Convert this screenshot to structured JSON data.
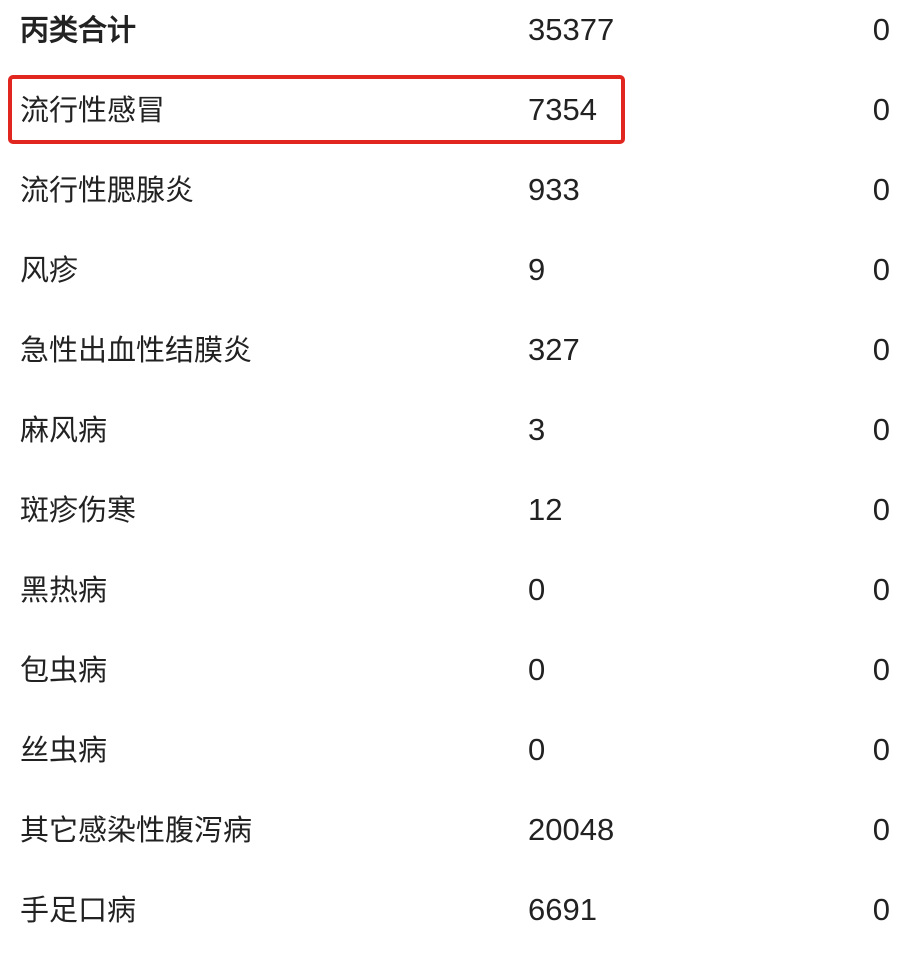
{
  "highlight_color": "#e0261f",
  "rows": [
    {
      "name": "丙类合计",
      "value": "35377",
      "extra": "0"
    },
    {
      "name": "流行性感冒",
      "value": "7354",
      "extra": "0"
    },
    {
      "name": "流行性腮腺炎",
      "value": "933",
      "extra": "0"
    },
    {
      "name": "风疹",
      "value": "9",
      "extra": "0"
    },
    {
      "name": "急性出血性结膜炎",
      "value": "327",
      "extra": "0"
    },
    {
      "name": "麻风病",
      "value": "3",
      "extra": "0"
    },
    {
      "name": "斑疹伤寒",
      "value": "12",
      "extra": "0"
    },
    {
      "name": "黑热病",
      "value": "0",
      "extra": "0"
    },
    {
      "name": "包虫病",
      "value": "0",
      "extra": "0"
    },
    {
      "name": "丝虫病",
      "value": "0",
      "extra": "0"
    },
    {
      "name": "其它感染性腹泻病",
      "value": "20048",
      "extra": "0"
    },
    {
      "name": "手足口病",
      "value": "6691",
      "extra": "0"
    }
  ]
}
